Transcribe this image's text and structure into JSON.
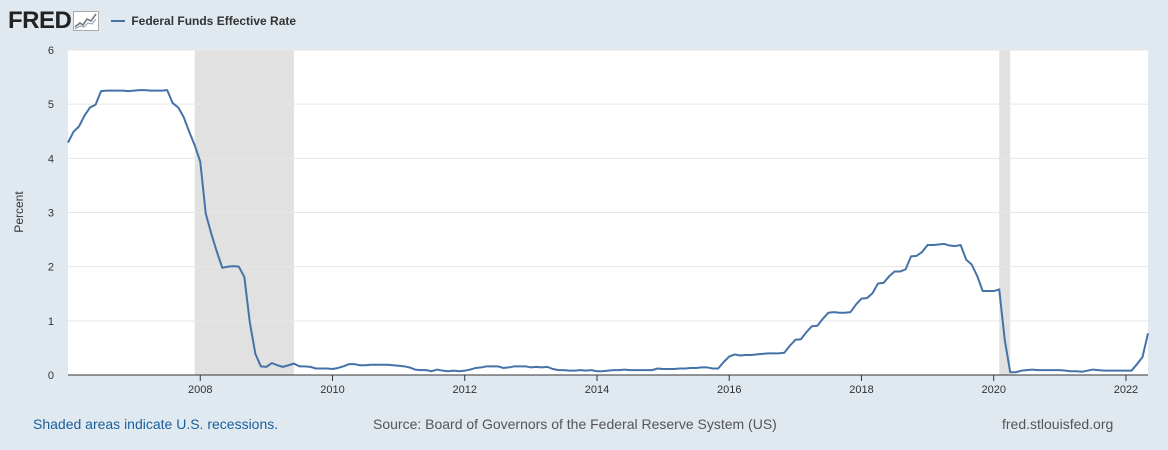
{
  "header": {
    "logo_text": "FRED",
    "legend_label": "Federal Funds Effective Rate"
  },
  "footer": {
    "recession_note": "Shaded areas indicate U.S. recessions.",
    "source": "Source: Board of Governors of the Federal Reserve System (US)",
    "site": "fred.stlouisfed.org"
  },
  "colors": {
    "line": "#4572a7",
    "recession": "#e1e1e1",
    "plot_background": "#ffffff",
    "page_background": "#e1e9f0",
    "grid": "#e6e6e6"
  },
  "chart_data": {
    "type": "line",
    "title": "",
    "ylabel": "Percent",
    "xlabel": "",
    "ylim": [
      0,
      6
    ],
    "xlim": [
      "2006-01",
      "2022-05"
    ],
    "yticks": [
      "0",
      "1",
      "2",
      "3",
      "4",
      "5",
      "6"
    ],
    "xticks": [
      "2008",
      "2010",
      "2012",
      "2014",
      "2016",
      "2018",
      "2020",
      "2022"
    ],
    "grid": "horizontal",
    "legend": "top-left",
    "recessions": [
      {
        "start": "2007-12",
        "end": "2009-06"
      },
      {
        "start": "2020-02",
        "end": "2020-04"
      }
    ],
    "series": [
      {
        "name": "Federal Funds Effective Rate",
        "frequency": "monthly",
        "start": "2006-01",
        "values": [
          4.29,
          4.49,
          4.59,
          4.79,
          4.94,
          4.99,
          5.24,
          5.25,
          5.25,
          5.25,
          5.25,
          5.24,
          5.25,
          5.26,
          5.26,
          5.25,
          5.25,
          5.25,
          5.26,
          5.02,
          4.94,
          4.76,
          4.49,
          4.24,
          3.94,
          2.98,
          2.61,
          2.28,
          1.98,
          2.0,
          2.01,
          2.0,
          1.81,
          0.97,
          0.39,
          0.16,
          0.15,
          0.22,
          0.18,
          0.15,
          0.18,
          0.21,
          0.16,
          0.16,
          0.15,
          0.12,
          0.12,
          0.12,
          0.11,
          0.13,
          0.16,
          0.2,
          0.2,
          0.18,
          0.18,
          0.19,
          0.19,
          0.19,
          0.19,
          0.18,
          0.17,
          0.16,
          0.14,
          0.1,
          0.09,
          0.09,
          0.07,
          0.1,
          0.08,
          0.07,
          0.08,
          0.07,
          0.08,
          0.1,
          0.13,
          0.14,
          0.16,
          0.16,
          0.16,
          0.13,
          0.14,
          0.16,
          0.16,
          0.16,
          0.14,
          0.15,
          0.14,
          0.15,
          0.11,
          0.09,
          0.09,
          0.08,
          0.08,
          0.09,
          0.08,
          0.09,
          0.07,
          0.07,
          0.08,
          0.09,
          0.09,
          0.1,
          0.09,
          0.09,
          0.09,
          0.09,
          0.09,
          0.12,
          0.11,
          0.11,
          0.11,
          0.12,
          0.12,
          0.13,
          0.13,
          0.14,
          0.14,
          0.12,
          0.12,
          0.24,
          0.34,
          0.38,
          0.36,
          0.37,
          0.37,
          0.38,
          0.39,
          0.4,
          0.4,
          0.4,
          0.41,
          0.54,
          0.65,
          0.66,
          0.79,
          0.9,
          0.91,
          1.04,
          1.15,
          1.16,
          1.15,
          1.15,
          1.16,
          1.3,
          1.41,
          1.42,
          1.51,
          1.69,
          1.7,
          1.82,
          1.91,
          1.91,
          1.95,
          2.19,
          2.2,
          2.27,
          2.4,
          2.4,
          2.41,
          2.42,
          2.39,
          2.38,
          2.4,
          2.13,
          2.04,
          1.83,
          1.55,
          1.55,
          1.55,
          1.58,
          0.65,
          0.05,
          0.05,
          0.08,
          0.09,
          0.1,
          0.09,
          0.09,
          0.09,
          0.09,
          0.09,
          0.08,
          0.07,
          0.07,
          0.06,
          0.08,
          0.1,
          0.09,
          0.08,
          0.08,
          0.08,
          0.08,
          0.08,
          0.08,
          0.2,
          0.33,
          0.77
        ]
      }
    ]
  }
}
